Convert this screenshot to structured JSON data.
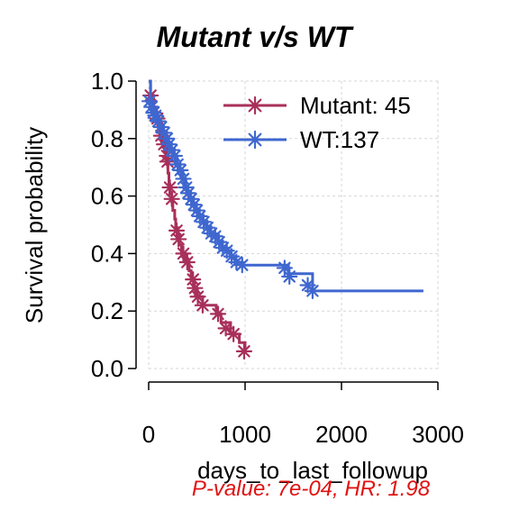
{
  "chart_data": {
    "type": "line",
    "title": "Mutant v/s WT",
    "xlabel": "days_to_last_followup",
    "ylabel": "Survival probability",
    "xlim": [
      0,
      3000
    ],
    "ylim": [
      0,
      1
    ],
    "x_ticks": [
      0,
      1000,
      2000,
      3000
    ],
    "y_ticks": [
      0.0,
      0.2,
      0.4,
      0.6,
      0.8,
      1.0
    ],
    "x_tick_labels": [
      "0",
      "1000",
      "2000",
      "3000"
    ],
    "y_tick_labels": [
      "0.0",
      "0.2",
      "0.4",
      "0.6",
      "0.8",
      "1.0"
    ],
    "grid": true,
    "legend_position": "top-right",
    "legend": [
      "Mutant: 45",
      "WT:137"
    ],
    "annotation": "P-value: 7e-04, HR: 1.98",
    "series": [
      {
        "name": "Mutant: 45",
        "color": "#a8305a",
        "censor_marker": "asterisk",
        "points": [
          [
            0,
            1.0
          ],
          [
            20,
            0.95
          ],
          [
            50,
            0.91
          ],
          [
            80,
            0.87
          ],
          [
            100,
            0.83
          ],
          [
            120,
            0.8
          ],
          [
            150,
            0.77
          ],
          [
            180,
            0.74
          ],
          [
            190,
            0.71
          ],
          [
            200,
            0.68
          ],
          [
            210,
            0.64
          ],
          [
            220,
            0.61
          ],
          [
            240,
            0.58
          ],
          [
            250,
            0.55
          ],
          [
            270,
            0.52
          ],
          [
            280,
            0.49
          ],
          [
            300,
            0.46
          ],
          [
            320,
            0.43
          ],
          [
            340,
            0.4
          ],
          [
            380,
            0.37
          ],
          [
            420,
            0.34
          ],
          [
            440,
            0.31
          ],
          [
            470,
            0.28
          ],
          [
            500,
            0.25
          ],
          [
            560,
            0.22
          ],
          [
            700,
            0.19
          ],
          [
            750,
            0.16
          ],
          [
            850,
            0.12
          ],
          [
            940,
            0.09
          ],
          [
            1000,
            0.06
          ]
        ],
        "censored": [
          [
            20,
            0.95
          ],
          [
            90,
            0.87
          ],
          [
            130,
            0.81
          ],
          [
            160,
            0.78
          ],
          [
            190,
            0.74
          ],
          [
            195,
            0.72
          ],
          [
            220,
            0.63
          ],
          [
            240,
            0.59
          ],
          [
            290,
            0.48
          ],
          [
            310,
            0.45
          ],
          [
            360,
            0.4
          ],
          [
            400,
            0.37
          ],
          [
            460,
            0.31
          ],
          [
            480,
            0.28
          ],
          [
            510,
            0.25
          ],
          [
            560,
            0.22
          ],
          [
            720,
            0.19
          ],
          [
            800,
            0.14
          ],
          [
            880,
            0.12
          ],
          [
            990,
            0.06
          ]
        ]
      },
      {
        "name": "WT:137",
        "color": "#3f67cf",
        "censor_marker": "asterisk",
        "points": [
          [
            0,
            1.0
          ],
          [
            20,
            0.93
          ],
          [
            40,
            0.9
          ],
          [
            60,
            0.88
          ],
          [
            90,
            0.86
          ],
          [
            120,
            0.84
          ],
          [
            150,
            0.82
          ],
          [
            180,
            0.8
          ],
          [
            200,
            0.78
          ],
          [
            230,
            0.76
          ],
          [
            260,
            0.74
          ],
          [
            290,
            0.71
          ],
          [
            320,
            0.69
          ],
          [
            350,
            0.66
          ],
          [
            380,
            0.63
          ],
          [
            400,
            0.61
          ],
          [
            430,
            0.59
          ],
          [
            460,
            0.57
          ],
          [
            490,
            0.55
          ],
          [
            520,
            0.53
          ],
          [
            560,
            0.51
          ],
          [
            600,
            0.49
          ],
          [
            640,
            0.47
          ],
          [
            680,
            0.46
          ],
          [
            720,
            0.44
          ],
          [
            760,
            0.42
          ],
          [
            800,
            0.41
          ],
          [
            850,
            0.39
          ],
          [
            900,
            0.37
          ],
          [
            960,
            0.36
          ],
          [
            1450,
            0.33
          ],
          [
            1700,
            0.27
          ],
          [
            2850,
            0.27
          ]
        ],
        "censored": [
          [
            10,
            0.93
          ],
          [
            30,
            0.91
          ],
          [
            50,
            0.89
          ],
          [
            70,
            0.88
          ],
          [
            100,
            0.86
          ],
          [
            130,
            0.84
          ],
          [
            160,
            0.82
          ],
          [
            190,
            0.8
          ],
          [
            210,
            0.78
          ],
          [
            240,
            0.76
          ],
          [
            270,
            0.74
          ],
          [
            300,
            0.71
          ],
          [
            330,
            0.69
          ],
          [
            360,
            0.66
          ],
          [
            390,
            0.63
          ],
          [
            410,
            0.61
          ],
          [
            440,
            0.59
          ],
          [
            470,
            0.57
          ],
          [
            500,
            0.55
          ],
          [
            530,
            0.53
          ],
          [
            570,
            0.51
          ],
          [
            610,
            0.49
          ],
          [
            650,
            0.47
          ],
          [
            690,
            0.46
          ],
          [
            730,
            0.44
          ],
          [
            770,
            0.42
          ],
          [
            810,
            0.41
          ],
          [
            860,
            0.39
          ],
          [
            910,
            0.37
          ],
          [
            970,
            0.36
          ],
          [
            1410,
            0.35
          ],
          [
            1460,
            0.32
          ],
          [
            1650,
            0.29
          ],
          [
            1700,
            0.27
          ]
        ]
      }
    ]
  }
}
